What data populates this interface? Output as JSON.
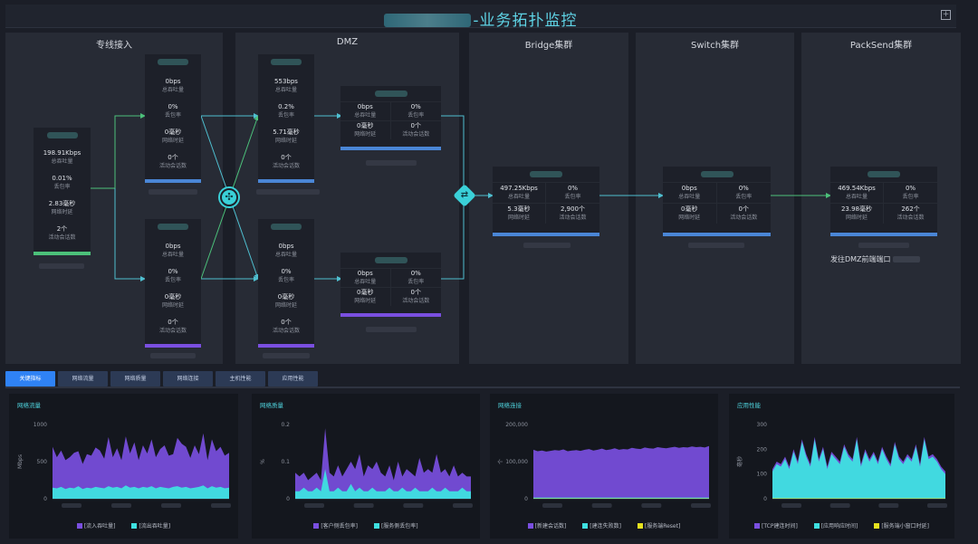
{
  "header": {
    "title_suffix": "-业务拓扑监控",
    "expand_icon": "expand-icon"
  },
  "columns": {
    "leased": "专线接入",
    "dmz": "DMZ",
    "bridge": "Bridge集群",
    "switch": "Switch集群",
    "packsend": "PackSend集群"
  },
  "source_card": {
    "throughput": "198.91Kbps",
    "throughput_label": "总吞吐量",
    "loss": "0.01%",
    "loss_label": "丢包率",
    "latency": "2.83毫秒",
    "latency_label": "网络时延",
    "sessions": "2个",
    "sessions_label": "活动会话数"
  },
  "leased_top": {
    "throughput": "0bps",
    "throughput_label": "总吞吐量",
    "loss": "0%",
    "loss_label": "丢包率",
    "latency": "0毫秒",
    "latency_label": "网络时延",
    "sessions": "0个",
    "sessions_label": "活动会话数"
  },
  "leased_bottom": {
    "throughput": "0bps",
    "throughput_label": "总吞吐量",
    "loss": "0%",
    "loss_label": "丢包率",
    "latency": "0毫秒",
    "latency_label": "网络时延",
    "sessions": "0个",
    "sessions_label": "活动会话数"
  },
  "dmz_top": {
    "throughput": "553bps",
    "throughput_label": "总吞吐量",
    "loss": "0.2%",
    "loss_label": "丢包率",
    "latency": "5.71毫秒",
    "latency_label": "网络时延",
    "sessions": "0个",
    "sessions_label": "活动会话数"
  },
  "dmz_bottom": {
    "throughput": "0bps",
    "throughput_label": "总吞吐量",
    "loss": "0%",
    "loss_label": "丢包率",
    "latency": "0毫秒",
    "latency_label": "网络时延",
    "sessions": "0个",
    "sessions_label": "活动会话数"
  },
  "dmz_wide_top": {
    "throughput": "0bps",
    "throughput_label": "总吞吐量",
    "loss": "0%",
    "loss_label": "丢包率",
    "latency": "0毫秒",
    "latency_label": "网络时延",
    "sessions": "0个",
    "sessions_label": "活动会话数"
  },
  "dmz_wide_bottom": {
    "throughput": "0bps",
    "throughput_label": "总吞吐量",
    "loss": "0%",
    "loss_label": "丢包率",
    "latency": "0毫秒",
    "latency_label": "网络时延",
    "sessions": "0个",
    "sessions_label": "活动会话数"
  },
  "bridge_card": {
    "throughput": "497.25Kbps",
    "throughput_label": "总吞吐量",
    "loss": "0%",
    "loss_label": "丢包率",
    "latency": "5.3毫秒",
    "latency_label": "网络时延",
    "sessions": "2,900个",
    "sessions_label": "活动会话数"
  },
  "switch_card": {
    "throughput": "0bps",
    "throughput_label": "总吞吐量",
    "loss": "0%",
    "loss_label": "丢包率",
    "latency": "0毫秒",
    "latency_label": "网络时延",
    "sessions": "0个",
    "sessions_label": "活动会话数"
  },
  "packsend_card": {
    "throughput": "469.54Kbps",
    "throughput_label": "总吞吐量",
    "loss": "0%",
    "loss_label": "丢包率",
    "latency": "23.98毫秒",
    "latency_label": "网络时延",
    "sessions": "262个",
    "sessions_label": "活动会话数",
    "note": "发往DMZ前端端口"
  },
  "tabs": [
    "关键指标",
    "网络流量",
    "网络质量",
    "网络连接",
    "主机性能",
    "应用性能"
  ],
  "active_tab": "关键指标",
  "colors": {
    "purple": "#7a4fe0",
    "cyan": "#3ee0e0",
    "yellow": "#e6e21f",
    "blue": "#4a86d6",
    "green": "#4cc07a",
    "accent": "#4fd2dc"
  },
  "panels": [
    {
      "title": "网络流量",
      "ylabel": "Mbps",
      "yticks": [
        "1000",
        "500",
        "0"
      ],
      "legend": [
        "[流入吞吐量]",
        "[流出吞吐量]"
      ],
      "chart_data": {
        "type": "area",
        "ylim": [
          0,
          1000
        ],
        "series": [
          {
            "name": "[流入吞吐量]",
            "values": [
              700,
              560,
              650,
              520,
              560,
              620,
              640,
              470,
              600,
              580,
              690,
              650,
              540,
              830,
              560,
              680,
              520,
              840,
              610,
              760,
              520,
              720,
              610,
              800,
              560,
              670,
              720,
              580,
              600,
              820,
              740,
              700,
              550,
              720,
              600,
              880,
              520,
              800,
              640,
              700,
              580,
              620
            ]
          },
          {
            "name": "[流出吞吐量]",
            "values": [
              150,
              140,
              160,
              130,
              150,
              140,
              170,
              130,
              150,
              140,
              160,
              150,
              140,
              170,
              150,
              160,
              140,
              180,
              150,
              160,
              140,
              160,
              150,
              170,
              140,
              160,
              150,
              140,
              160,
              170,
              150,
              160,
              140,
              150,
              160,
              180,
              140,
              170,
              150,
              160,
              140,
              150
            ]
          }
        ]
      }
    },
    {
      "title": "网络质量",
      "ylabel": "%",
      "yticks": [
        "0.2",
        "0.1",
        "0"
      ],
      "legend": [
        "[客户侧丢包率]",
        "[服务侧丢包率]"
      ],
      "chart_data": {
        "type": "area",
        "ylim": [
          0,
          0.2
        ],
        "series": [
          {
            "name": "[客户侧丢包率]",
            "values": [
              0.07,
              0.06,
              0.07,
              0.05,
              0.06,
              0.07,
              0.05,
              0.19,
              0.07,
              0.06,
              0.09,
              0.06,
              0.08,
              0.1,
              0.08,
              0.12,
              0.06,
              0.09,
              0.08,
              0.1,
              0.07,
              0.06,
              0.09,
              0.05,
              0.1,
              0.06,
              0.08,
              0.07,
              0.06,
              0.11,
              0.07,
              0.08,
              0.07,
              0.12,
              0.07,
              0.08,
              0.06,
              0.09,
              0.06,
              0.07,
              0.06,
              0.06
            ]
          },
          {
            "name": "[服务侧丢包率]",
            "values": [
              0.02,
              0.02,
              0.03,
              0.02,
              0.02,
              0.03,
              0.02,
              0.08,
              0.02,
              0.02,
              0.03,
              0.02,
              0.02,
              0.04,
              0.02,
              0.03,
              0.02,
              0.02,
              0.03,
              0.02,
              0.02,
              0.02,
              0.03,
              0.02,
              0.02,
              0.03,
              0.02,
              0.02,
              0.03,
              0.02,
              0.02,
              0.02,
              0.03,
              0.02,
              0.02,
              0.03,
              0.02,
              0.02,
              0.02,
              0.03,
              0.02,
              0.02
            ]
          }
        ]
      }
    },
    {
      "title": "网络连接",
      "ylabel": "个",
      "yticks": [
        "200,000",
        "100,000",
        "0"
      ],
      "legend": [
        "[新建会话数]",
        "[建连失败数]",
        "[服务端Reset]"
      ],
      "chart_data": {
        "type": "area",
        "ylim": [
          0,
          200000
        ],
        "series": [
          {
            "name": "[新建会话数]",
            "values": [
              132000,
              128000,
              130000,
              127000,
              129000,
              131000,
              130000,
              133000,
              128000,
              130000,
              131000,
              129000,
              132000,
              134000,
              130000,
              132000,
              135000,
              131000,
              133000,
              136000,
              132000,
              134000,
              133000,
              137000,
              135000,
              134000,
              138000,
              136000,
              135000,
              139000,
              137000,
              136000,
              138000,
              140000,
              137000,
              139000,
              138000,
              141000,
              139000,
              140000,
              138000,
              142000
            ]
          },
          {
            "name": "[建连失败数]",
            "values": [
              3000,
              3000,
              3000,
              3000,
              3000,
              3000,
              3000,
              3000,
              3000,
              3000,
              3000,
              3000,
              3000,
              3000,
              3000,
              3000,
              3000,
              3000,
              3000,
              3000,
              3000,
              3000,
              3000,
              3000,
              3000,
              3000,
              3000,
              3000,
              3000,
              3000,
              3000,
              3000,
              3000,
              3000,
              3000,
              3000,
              3000,
              3000,
              3000,
              3000,
              3000,
              3000
            ]
          },
          {
            "name": "[服务端Reset]",
            "values": [
              1000,
              1000,
              1000,
              1000,
              1000,
              1000,
              1000,
              1000,
              1000,
              1000,
              1000,
              1000,
              1000,
              1000,
              1000,
              1000,
              1000,
              1000,
              1000,
              1000,
              1000,
              1000,
              1000,
              1000,
              1000,
              1000,
              1000,
              1000,
              1000,
              1000,
              1000,
              1000,
              1000,
              1000,
              1000,
              1000,
              1000,
              1000,
              1000,
              1000,
              1000,
              1000
            ]
          }
        ]
      }
    },
    {
      "title": "应用性能",
      "ylabel": "毫秒",
      "yticks": [
        "300",
        "200",
        "100",
        "0"
      ],
      "legend": [
        "[TCP建连时间]",
        "[应用响应时间]",
        "[服务端小窗口时延]"
      ],
      "chart_data": {
        "type": "area",
        "ylim": [
          0,
          300
        ],
        "series": [
          {
            "name": "[TCP建连时间]",
            "values": [
              120,
              150,
              140,
              170,
              130,
              200,
              150,
              240,
              180,
              140,
              250,
              160,
              210,
              130,
              190,
              170,
              150,
              220,
              180,
              160,
              250,
              140,
              200,
              160,
              190,
              150,
              210,
              170,
              140,
              230,
              170,
              150,
              180,
              160,
              220,
              140,
              250,
              170,
              180,
              160,
              130,
              110
            ]
          },
          {
            "name": "[应用响应时间]",
            "values": [
              110,
              140,
              130,
              160,
              120,
              190,
              140,
              230,
              170,
              130,
              240,
              150,
              200,
              120,
              180,
              160,
              140,
              210,
              170,
              150,
              240,
              130,
              190,
              150,
              180,
              140,
              200,
              160,
              130,
              220,
              160,
              140,
              170,
              150,
              210,
              130,
              240,
              160,
              170,
              150,
              120,
              100
            ]
          },
          {
            "name": "[服务端小窗口时延]",
            "values": [
              2,
              2,
              2,
              2,
              2,
              2,
              2,
              2,
              2,
              2,
              2,
              2,
              2,
              2,
              2,
              2,
              2,
              2,
              2,
              2,
              2,
              2,
              2,
              2,
              2,
              2,
              2,
              2,
              2,
              2,
              2,
              2,
              2,
              2,
              2,
              2,
              2,
              2,
              2,
              2,
              2,
              2
            ]
          }
        ]
      }
    }
  ]
}
